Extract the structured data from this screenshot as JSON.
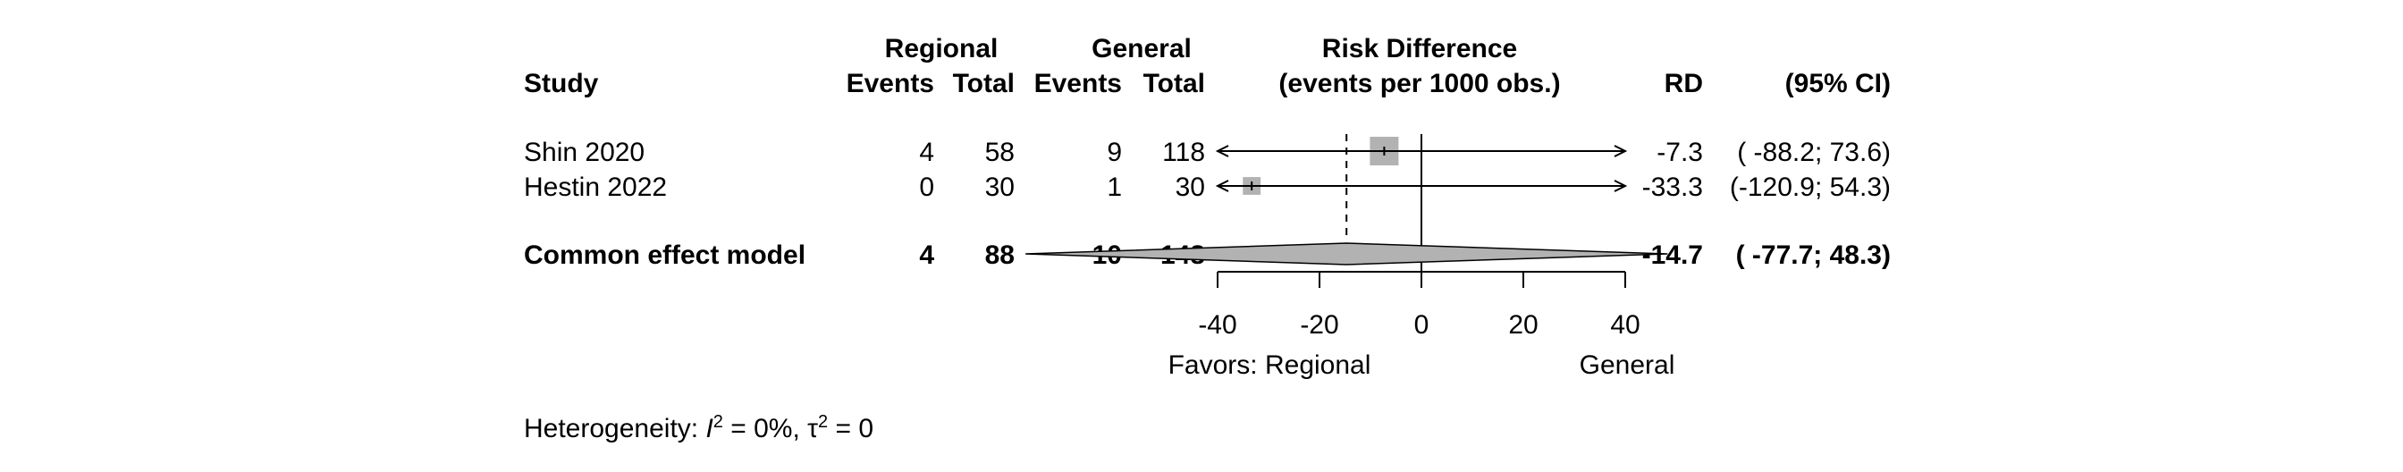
{
  "chart_data": {
    "type": "forest",
    "headers": {
      "study": "Study",
      "group1": "Regional",
      "group2": "General",
      "events": "Events",
      "total": "Total",
      "effect_title_line1": "Risk Difference",
      "effect_title_line2": "(events per 1000 obs.)",
      "rd": "RD",
      "ci": "(95% CI)"
    },
    "studies": [
      {
        "name": "Shin 2020",
        "events1": "4",
        "total1": "58",
        "events2": "9",
        "total2": "118",
        "rd": -7.3,
        "lower": -88.2,
        "upper": 73.6,
        "rd_text": "-7.3",
        "ci_text": "( -88.2; 73.6)",
        "weight_box": 1.0
      },
      {
        "name": "Hestin 2022",
        "events1": "0",
        "total1": "30",
        "events2": "1",
        "total2": "30",
        "rd": -33.3,
        "lower": -120.9,
        "upper": 54.3,
        "rd_text": "-33.3",
        "ci_text": "(-120.9; 54.3)",
        "weight_box": 0.62
      }
    ],
    "pooled": {
      "name": "Common effect model",
      "events1": "4",
      "total1": "88",
      "events2": "10",
      "total2": "148",
      "rd": -14.7,
      "lower": -77.7,
      "upper": 48.3,
      "rd_text": "-14.7",
      "ci_text": "( -77.7; 48.3)"
    },
    "axis": {
      "xlim": [
        -40,
        40
      ],
      "ticks": [
        -40,
        -20,
        0,
        20,
        40
      ],
      "tick_labels": [
        "-40",
        "-20",
        "0",
        "20",
        "40"
      ],
      "favors_left": "Favors: Regional",
      "favors_right": "General",
      "null_line": 0
    },
    "heterogeneity": {
      "prefix": "Heterogeneity: ",
      "i2_symbol": "I",
      "i2_value": " = 0%, ",
      "tau2_symbol": "τ",
      "tau2_value": " = 0"
    },
    "colors": {
      "box": "#b2b2b2",
      "diamond": "#b2b2b2",
      "line": "#000000"
    }
  }
}
